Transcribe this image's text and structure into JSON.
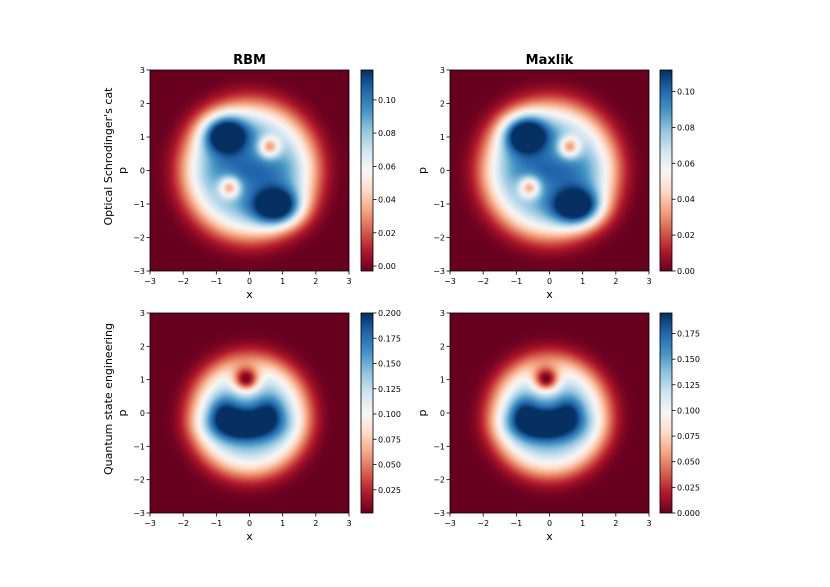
{
  "chart_data": [
    {
      "type": "heatmap",
      "title": "RBM",
      "row_label": "Optical Schrodinger's cat",
      "xlabel": "x",
      "ylabel": "p",
      "xlim": [
        -3,
        3
      ],
      "ylim": [
        -3,
        3
      ],
      "xticks": [
        "−3",
        "−2",
        "−1",
        "0",
        "1",
        "2",
        "3"
      ],
      "yticks": [
        "−3",
        "−2",
        "−1",
        "0",
        "1",
        "2",
        "3"
      ],
      "colormap": "RdBu",
      "colorbar": {
        "min": -0.003,
        "max": 0.118,
        "ticks": [
          "0.00",
          "0.02",
          "0.04",
          "0.06",
          "0.08",
          "0.10"
        ],
        "tick_values": [
          0,
          0.02,
          0.04,
          0.06,
          0.08,
          0.1
        ]
      },
      "features": [
        {
          "kind": "peak",
          "x": -0.7,
          "p": 1.1,
          "value": 0.118
        },
        {
          "kind": "peak",
          "x": 0.8,
          "p": -1.1,
          "value": 0.118
        },
        {
          "kind": "dip",
          "x": 0.6,
          "p": 0.7,
          "value": 0.035
        },
        {
          "kind": "dip",
          "x": -0.6,
          "p": -0.5,
          "value": 0.035
        }
      ]
    },
    {
      "type": "heatmap",
      "title": "Maxlik",
      "row_label": "",
      "xlabel": "x",
      "ylabel": "p",
      "xlim": [
        -3,
        3
      ],
      "ylim": [
        -3,
        3
      ],
      "xticks": [
        "−3",
        "−2",
        "−1",
        "0",
        "1",
        "2",
        "3"
      ],
      "yticks": [
        "−3",
        "−2",
        "−1",
        "0",
        "1",
        "2",
        "3"
      ],
      "colormap": "RdBu",
      "colorbar": {
        "min": 0.0,
        "max": 0.112,
        "ticks": [
          "0.00",
          "0.02",
          "0.04",
          "0.06",
          "0.08",
          "0.10"
        ],
        "tick_values": [
          0,
          0.02,
          0.04,
          0.06,
          0.08,
          0.1
        ]
      },
      "features": [
        {
          "kind": "peak",
          "x": -0.7,
          "p": 1.1,
          "value": 0.112
        },
        {
          "kind": "peak",
          "x": 0.8,
          "p": -1.1,
          "value": 0.112
        },
        {
          "kind": "dip",
          "x": 0.6,
          "p": 0.7,
          "value": 0.04
        },
        {
          "kind": "dip",
          "x": -0.6,
          "p": -0.5,
          "value": 0.04
        }
      ]
    },
    {
      "type": "heatmap",
      "title": "",
      "row_label": "Quantum state engineering",
      "xlabel": "x",
      "ylabel": "p",
      "xlim": [
        -3,
        3
      ],
      "ylim": [
        -3,
        3
      ],
      "xticks": [
        "−3",
        "−2",
        "−1",
        "0",
        "1",
        "2",
        "3"
      ],
      "yticks": [
        "−3",
        "−2",
        "−1",
        "0",
        "1",
        "2",
        "3"
      ],
      "colormap": "RdBu",
      "colorbar": {
        "min": 0.002,
        "max": 0.2,
        "ticks": [
          "0.025",
          "0.050",
          "0.075",
          "0.100",
          "0.125",
          "0.150",
          "0.175",
          "0.200"
        ],
        "tick_values": [
          0.025,
          0.05,
          0.075,
          0.1,
          0.125,
          0.15,
          0.175,
          0.2
        ]
      },
      "features": [
        {
          "kind": "peak",
          "x": -0.2,
          "p": -0.3,
          "value": 0.2
        },
        {
          "kind": "dip",
          "x": -0.1,
          "p": 1.0,
          "value": 0.03
        }
      ]
    },
    {
      "type": "heatmap",
      "title": "",
      "row_label": "",
      "xlabel": "x",
      "ylabel": "p",
      "xlim": [
        -3,
        3
      ],
      "ylim": [
        -3,
        3
      ],
      "xticks": [
        "−3",
        "−2",
        "−1",
        "0",
        "1",
        "2",
        "3"
      ],
      "yticks": [
        "−3",
        "−2",
        "−1",
        "0",
        "1",
        "2",
        "3"
      ],
      "colormap": "RdBu",
      "colorbar": {
        "min": 0.0,
        "max": 0.195,
        "ticks": [
          "0.000",
          "0.025",
          "0.050",
          "0.075",
          "0.100",
          "0.125",
          "0.150",
          "0.175"
        ],
        "tick_values": [
          0,
          0.025,
          0.05,
          0.075,
          0.1,
          0.125,
          0.15,
          0.175
        ]
      },
      "features": [
        {
          "kind": "peak",
          "x": -0.2,
          "p": -0.3,
          "value": 0.195
        },
        {
          "kind": "dip",
          "x": -0.1,
          "p": 1.0,
          "value": 0.025
        }
      ]
    }
  ]
}
